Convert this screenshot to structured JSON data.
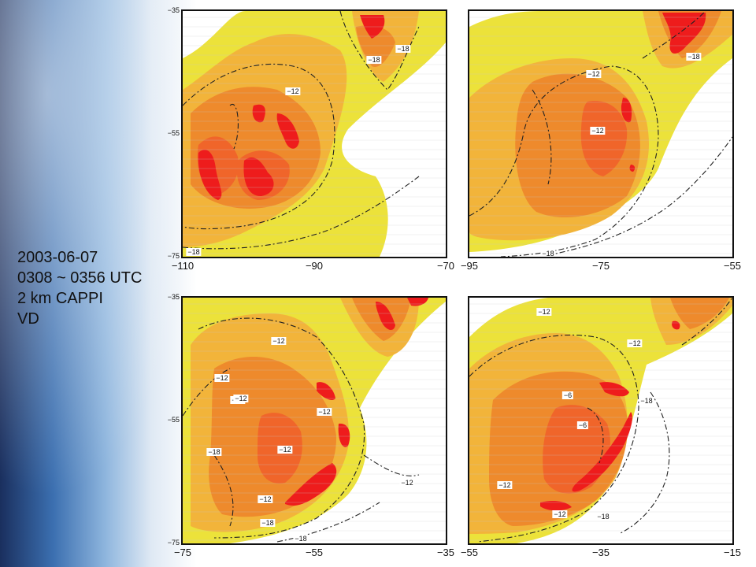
{
  "info": {
    "date": "2003-06-07",
    "time": "0308 ~ 0356 UTC",
    "product": "2 km CAPPI",
    "field": "VD"
  },
  "colors": {
    "yellow": "#ece23a",
    "light_orange": "#f2b43a",
    "orange": "#ee8a2c",
    "dark_orange": "#f0652a",
    "red": "#ee1c1c"
  },
  "panels": [
    {
      "id": "top-left",
      "y_ticks": [
        "-35",
        "-55",
        "-75"
      ],
      "x_ticks": [
        "-110",
        "-90",
        "-70"
      ],
      "contour_labels": [
        "-18",
        "-18",
        "-12",
        "-18"
      ]
    },
    {
      "id": "top-right",
      "y_ticks": [],
      "x_ticks": [
        "-95",
        "-75",
        "-55"
      ],
      "contour_labels": [
        "-18",
        "-12",
        "-12",
        "-18"
      ]
    },
    {
      "id": "bottom-left",
      "y_ticks": [
        "-35",
        "-55",
        "-75"
      ],
      "x_ticks": [
        "-75",
        "-55",
        "-35"
      ],
      "contour_labels": [
        "-12",
        "-12",
        "-12",
        "-12",
        "-12",
        "-12",
        "-18",
        "-12",
        "-12",
        "-18",
        "-18"
      ]
    },
    {
      "id": "bottom-right",
      "y_ticks": [],
      "x_ticks": [
        "-55",
        "-35",
        "-15"
      ],
      "contour_labels": [
        "-12",
        "-12",
        "-6",
        "-6",
        "-18",
        "-12",
        "-12",
        "-18"
      ]
    }
  ]
}
